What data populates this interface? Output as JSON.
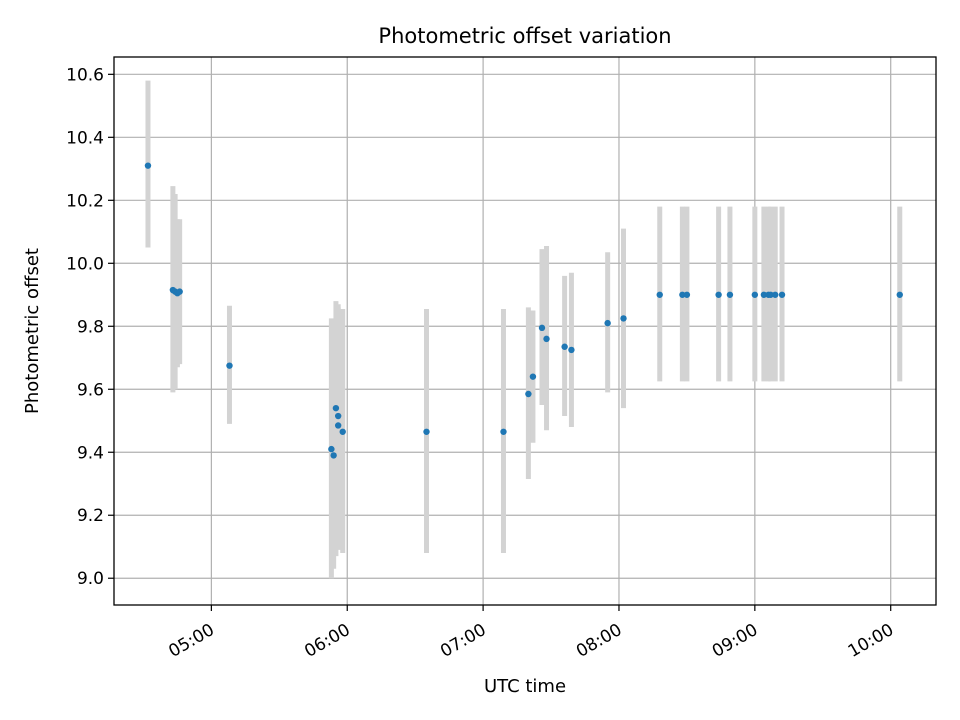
{
  "chart_data": {
    "type": "scatter",
    "title": "Photometric offset variation",
    "xlabel": "UTC time",
    "ylabel": "Photometric offset",
    "x_is_time": true,
    "xlim": [
      "04:17",
      "10:20"
    ],
    "ylim": [
      8.915,
      10.655
    ],
    "xticks": [
      "05:00",
      "06:00",
      "07:00",
      "08:00",
      "09:00",
      "10:00"
    ],
    "yticks": [
      "9.0",
      "9.2",
      "9.4",
      "9.6",
      "9.8",
      "10.0",
      "10.2",
      "10.4",
      "10.6"
    ],
    "grid": true,
    "point_color": "#1f77b4",
    "errorbar_color": "#d3d3d3",
    "points": [
      {
        "t": "04:32",
        "y": 10.31,
        "lo": 10.05,
        "hi": 10.58
      },
      {
        "t": "04:43",
        "y": 9.915,
        "lo": 9.59,
        "hi": 10.245
      },
      {
        "t": "04:44",
        "y": 9.91,
        "lo": 9.6,
        "hi": 10.22
      },
      {
        "t": "04:45",
        "y": 9.905,
        "lo": 9.67,
        "hi": 10.14
      },
      {
        "t": "04:46",
        "y": 9.91,
        "lo": 9.68,
        "hi": 10.14
      },
      {
        "t": "05:08",
        "y": 9.675,
        "lo": 9.49,
        "hi": 9.865
      },
      {
        "t": "05:53",
        "y": 9.41,
        "lo": 9.0,
        "hi": 9.825
      },
      {
        "t": "05:54",
        "y": 9.39,
        "lo": 9.03,
        "hi": 9.75
      },
      {
        "t": "05:55",
        "y": 9.54,
        "lo": 9.07,
        "hi": 9.88
      },
      {
        "t": "05:56",
        "y": 9.515,
        "lo": 9.1,
        "hi": 9.87
      },
      {
        "t": "05:56",
        "y": 9.485,
        "lo": 9.09,
        "hi": 9.86
      },
      {
        "t": "05:58",
        "y": 9.465,
        "lo": 9.08,
        "hi": 9.855
      },
      {
        "t": "06:35",
        "y": 9.465,
        "lo": 9.08,
        "hi": 9.855
      },
      {
        "t": "07:09",
        "y": 9.465,
        "lo": 9.08,
        "hi": 9.855
      },
      {
        "t": "07:20",
        "y": 9.585,
        "lo": 9.315,
        "hi": 9.86
      },
      {
        "t": "07:22",
        "y": 9.64,
        "lo": 9.43,
        "hi": 9.85
      },
      {
        "t": "07:26",
        "y": 9.795,
        "lo": 9.55,
        "hi": 10.045
      },
      {
        "t": "07:28",
        "y": 9.76,
        "lo": 9.47,
        "hi": 10.055
      },
      {
        "t": "07:36",
        "y": 9.735,
        "lo": 9.515,
        "hi": 9.96
      },
      {
        "t": "07:39",
        "y": 9.725,
        "lo": 9.48,
        "hi": 9.97
      },
      {
        "t": "07:55",
        "y": 9.81,
        "lo": 9.59,
        "hi": 10.035
      },
      {
        "t": "08:02",
        "y": 9.825,
        "lo": 9.54,
        "hi": 10.11
      },
      {
        "t": "08:18",
        "y": 9.9,
        "lo": 9.625,
        "hi": 10.18
      },
      {
        "t": "08:28",
        "y": 9.9,
        "lo": 9.625,
        "hi": 10.18
      },
      {
        "t": "08:30",
        "y": 9.9,
        "lo": 9.625,
        "hi": 10.18
      },
      {
        "t": "08:44",
        "y": 9.9,
        "lo": 9.625,
        "hi": 10.18
      },
      {
        "t": "08:49",
        "y": 9.9,
        "lo": 9.625,
        "hi": 10.18
      },
      {
        "t": "09:00",
        "y": 9.9,
        "lo": 9.625,
        "hi": 10.18
      },
      {
        "t": "09:04",
        "y": 9.9,
        "lo": 9.625,
        "hi": 10.18
      },
      {
        "t": "09:06",
        "y": 9.9,
        "lo": 9.625,
        "hi": 10.18
      },
      {
        "t": "09:07",
        "y": 9.9,
        "lo": 9.625,
        "hi": 10.18
      },
      {
        "t": "09:09",
        "y": 9.9,
        "lo": 9.625,
        "hi": 10.18
      },
      {
        "t": "09:12",
        "y": 9.9,
        "lo": 9.625,
        "hi": 10.18
      },
      {
        "t": "10:04",
        "y": 9.9,
        "lo": 9.625,
        "hi": 10.18
      }
    ]
  }
}
